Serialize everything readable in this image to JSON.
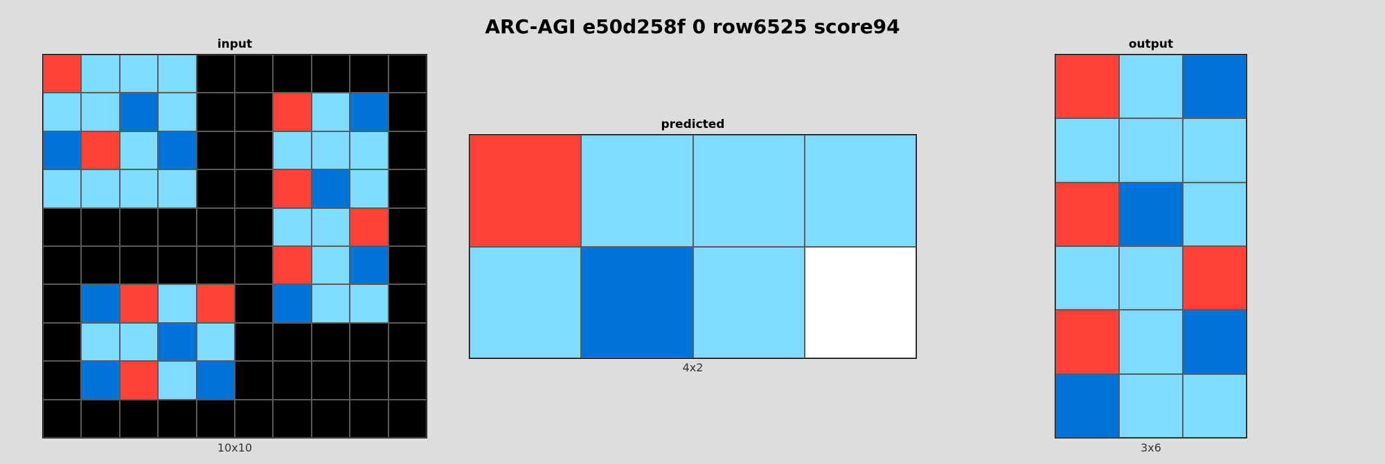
{
  "title": "ARC-AGI e50d258f 0 row6525 score94",
  "palette": {
    "0": "#000000",
    "1": "#0074d9",
    "2": "#ff4136",
    "8": "#7fdbff",
    "empty": "#ffffff"
  },
  "panels": {
    "input": {
      "label": "input",
      "caption": "10x10",
      "grid": [
        [
          2,
          8,
          8,
          8,
          0,
          0,
          0,
          0,
          0,
          0
        ],
        [
          8,
          8,
          1,
          8,
          0,
          0,
          2,
          8,
          1,
          0
        ],
        [
          1,
          2,
          8,
          1,
          0,
          0,
          8,
          8,
          8,
          0
        ],
        [
          8,
          8,
          8,
          8,
          0,
          0,
          2,
          1,
          8,
          0
        ],
        [
          0,
          0,
          0,
          0,
          0,
          0,
          8,
          8,
          2,
          0
        ],
        [
          0,
          0,
          0,
          0,
          0,
          0,
          2,
          8,
          1,
          0
        ],
        [
          0,
          1,
          2,
          8,
          2,
          0,
          1,
          8,
          8,
          0
        ],
        [
          0,
          8,
          8,
          1,
          8,
          0,
          0,
          0,
          0,
          0
        ],
        [
          0,
          1,
          2,
          8,
          1,
          0,
          0,
          0,
          0,
          0
        ],
        [
          0,
          0,
          0,
          0,
          0,
          0,
          0,
          0,
          0,
          0
        ]
      ]
    },
    "predicted": {
      "label": "predicted",
      "caption": "4x2",
      "grid": [
        [
          2,
          8,
          8,
          8
        ],
        [
          8,
          1,
          8,
          "empty"
        ]
      ]
    },
    "output": {
      "label": "output",
      "caption": "3x6",
      "grid": [
        [
          2,
          8,
          1
        ],
        [
          8,
          8,
          8
        ],
        [
          2,
          1,
          8
        ],
        [
          8,
          8,
          2
        ],
        [
          2,
          8,
          1
        ],
        [
          1,
          8,
          8
        ]
      ]
    }
  }
}
